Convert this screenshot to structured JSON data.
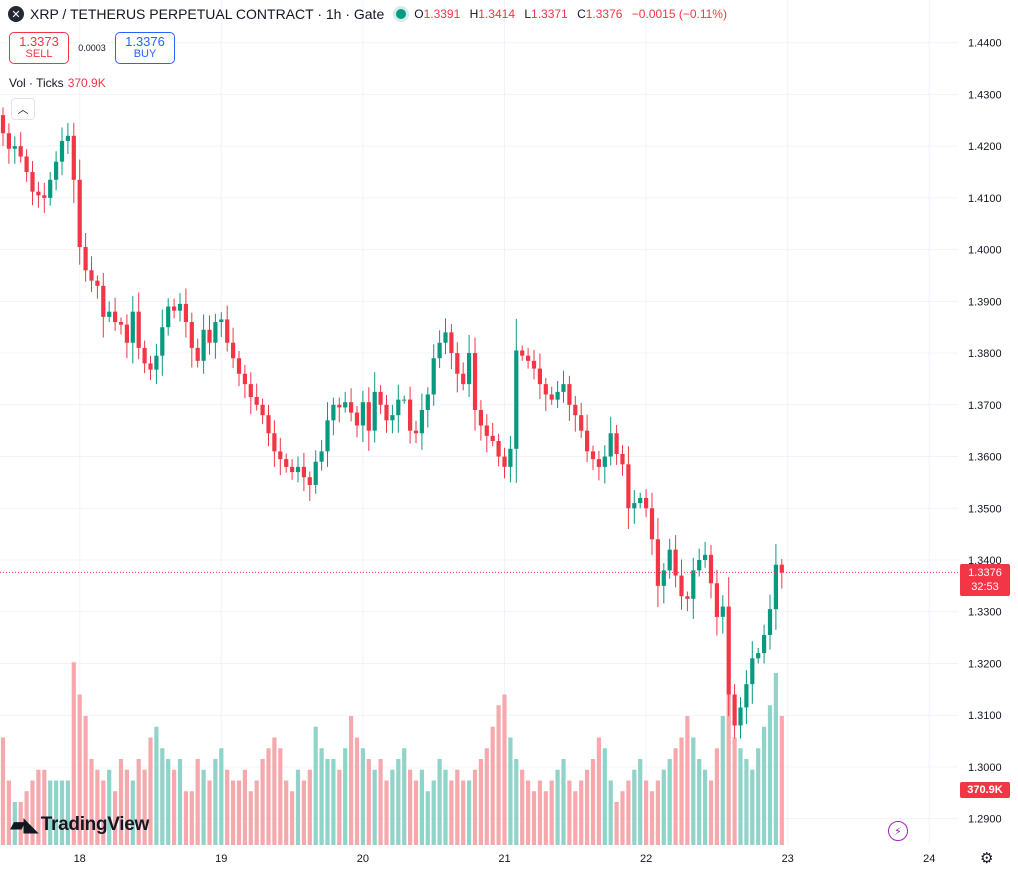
{
  "header": {
    "symbol_icon": "x-logo-icon",
    "title": "XRP / TETHERUS PERPETUAL CONTRACT · 1h · Gate",
    "ohlc": {
      "o_label": "O",
      "o": "1.3391",
      "h_label": "H",
      "h": "1.3414",
      "l_label": "L",
      "l": "1.3371",
      "c_label": "C",
      "c": "1.3376",
      "change": "−0.0015 (−0.11%)"
    }
  },
  "trade": {
    "sell_price": "1.3373",
    "sell_label": "SELL",
    "spread": "0.0003",
    "buy_price": "1.3376",
    "buy_label": "BUY"
  },
  "volume_legend": {
    "label": "Vol · Ticks",
    "value": "370.9K"
  },
  "price_tag": {
    "price": "1.3376",
    "countdown": "32:53"
  },
  "volume_tag": "370.9K",
  "logo": "TradingView",
  "colors": {
    "up": "#089981",
    "down": "#f23645",
    "vol_up": "#8fd3c9",
    "vol_down": "#f6a9ad"
  },
  "chart_data": {
    "type": "candlestick",
    "interval": "1h",
    "y_ticks": [
      "1.4400",
      "1.4300",
      "1.4200",
      "1.4100",
      "1.4000",
      "1.3900",
      "1.3800",
      "1.3700",
      "1.3600",
      "1.3500",
      "1.3400",
      "1.3300",
      "1.3200",
      "1.3100",
      "1.3000",
      "1.2900"
    ],
    "ylim": [
      1.288,
      1.444
    ],
    "x_ticks": [
      {
        "label": "18",
        "index": 13
      },
      {
        "label": "19",
        "index": 37
      },
      {
        "label": "20",
        "index": 61
      },
      {
        "label": "21",
        "index": 85
      },
      {
        "label": "22",
        "index": 109
      },
      {
        "label": "23",
        "index": 133
      },
      {
        "label": "24",
        "index": 157
      }
    ],
    "last_price": 1.3376,
    "candles": []
  }
}
